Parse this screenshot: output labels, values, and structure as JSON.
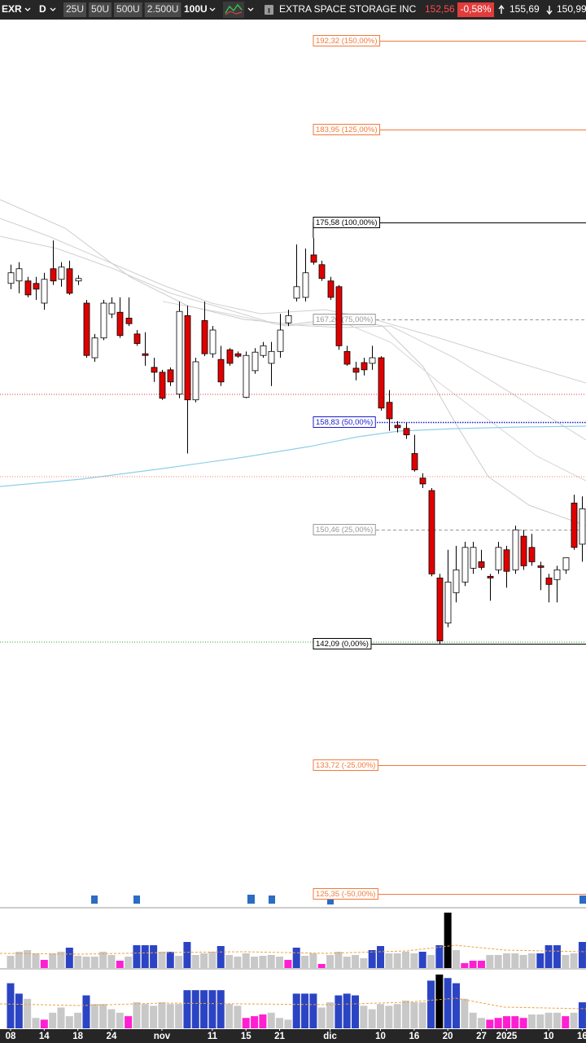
{
  "toolbar": {
    "symbol": "EXR",
    "period": "D",
    "sizes": [
      "25U",
      "50U",
      "500U",
      "2.500U"
    ],
    "qty": "100U",
    "name": "EXTRA SPACE STORAGE INC",
    "price": "152,56",
    "change": "-0,58%",
    "high": "155,69",
    "low": "150,99"
  },
  "chart_data": {
    "type": "candlestick",
    "log_scale": true,
    "ylim": [
      124.56,
      194.4
    ],
    "up_color": "#ffffff",
    "down_color": "#e00000",
    "categories": [
      "08",
      null,
      null,
      null,
      "14",
      null,
      null,
      null,
      "18",
      null,
      null,
      null,
      "24",
      null,
      null,
      null,
      null,
      null,
      "nov",
      null,
      null,
      null,
      null,
      null,
      "11",
      null,
      null,
      null,
      "15",
      null,
      null,
      null,
      "21",
      null,
      null,
      null,
      null,
      null,
      "dic",
      null,
      null,
      null,
      null,
      null,
      "10",
      null,
      null,
      null,
      "16",
      null,
      null,
      null,
      "20",
      null,
      null,
      null,
      "27",
      null,
      null,
      "2025",
      null,
      null,
      null,
      null,
      "10",
      null,
      null,
      null,
      "16"
    ],
    "open": [
      170.28,
      170.49,
      170.49,
      170.28,
      168.6,
      171.54,
      170.63,
      171.54,
      170.49,
      168.6,
      164.04,
      165.68,
      167.69,
      167.83,
      167.34,
      166.01,
      164.37,
      163.25,
      162.85,
      163.05,
      161.07,
      167.55,
      160.61,
      167.13,
      164.37,
      163.9,
      164.7,
      164.37,
      160.81,
      162.98,
      164.23,
      163.58,
      164.56,
      166.94,
      169.02,
      169.09,
      172.73,
      171.89,
      170.49,
      170.0,
      164.56,
      163.18,
      163.64,
      163.58,
      164.04,
      160.41,
      158.57,
      158.32,
      156.34,
      154.42,
      153.46,
      146.87,
      143.58,
      145.79,
      146.57,
      147.59,
      148.07,
      146.99,
      147.47,
      148.96,
      147.47,
      149.98,
      149.14,
      147.77,
      146.87,
      146.75,
      147.47,
      152.5,
      149.38
    ],
    "high": [
      171.89,
      172.1,
      170.84,
      170.84,
      171.19,
      173.99,
      172.1,
      172.24,
      170.98,
      168.88,
      166.01,
      168.88,
      169.09,
      169.09,
      169.09,
      166.34,
      166.15,
      164.04,
      163.05,
      163.25,
      168.74,
      168.39,
      164.04,
      168.74,
      166.67,
      165.03,
      164.83,
      164.56,
      164.56,
      164.83,
      165.35,
      165.35,
      167.69,
      168.04,
      173.64,
      173.29,
      174.2,
      172.24,
      170.84,
      170.14,
      165.03,
      163.71,
      164.04,
      165.03,
      164.17,
      161.4,
      158.9,
      158.77,
      157.81,
      154.8,
      153.65,
      147.17,
      148.96,
      149.26,
      149.56,
      149.56,
      148.96,
      147.17,
      149.56,
      149.26,
      150.78,
      150.46,
      150.16,
      148.07,
      147.17,
      147.77,
      148.37,
      153.14,
      153.01
    ],
    "low": [
      169.79,
      169.44,
      169.09,
      168.88,
      168.04,
      170.14,
      170.0,
      169.3,
      170.14,
      164.04,
      163.71,
      165.49,
      167.34,
      165.68,
      166.67,
      165.03,
      163.38,
      162.06,
      160.61,
      161.73,
      160.74,
      156.34,
      160.41,
      164.17,
      164.04,
      161.73,
      163.38,
      164.04,
      160.74,
      162.72,
      164.04,
      161.73,
      164.04,
      166.67,
      168.74,
      168.74,
      171.89,
      170.49,
      168.88,
      164.7,
      163.38,
      162.19,
      162.59,
      163.05,
      159.75,
      158.13,
      158.0,
      157.49,
      154.93,
      153.65,
      146.99,
      142.09,
      143.28,
      145.08,
      146.27,
      147.17,
      147.47,
      145.2,
      147.17,
      146.15,
      147.17,
      147.47,
      147.77,
      145.97,
      145.08,
      145.08,
      147.17,
      148.96,
      148.07
    ],
    "close": [
      171.19,
      171.54,
      169.3,
      169.79,
      170.63,
      170.49,
      171.68,
      169.44,
      170.7,
      164.23,
      165.68,
      168.6,
      168.6,
      165.88,
      166.87,
      165.22,
      164.23,
      162.85,
      160.74,
      162.06,
      167.9,
      160.61,
      163.71,
      164.37,
      166.34,
      162.06,
      163.58,
      164.17,
      164.23,
      164.5,
      165.03,
      164.56,
      166.34,
      167.55,
      170.0,
      171.19,
      172.1,
      170.7,
      169.09,
      165.03,
      163.51,
      162.85,
      163.05,
      164.04,
      159.95,
      159.09,
      158.38,
      157.81,
      155.06,
      153.97,
      147.17,
      142.3,
      146.57,
      147.47,
      149.14,
      149.14,
      147.65,
      146.87,
      149.14,
      147.36,
      150.46,
      147.77,
      148.07,
      147.65,
      146.39,
      147.47,
      148.37,
      149.14,
      152.06
    ],
    "fib_levels": [
      {
        "value": 192.32,
        "label": "192,32 (150,00%)",
        "color": "#f07a3c",
        "style": "solid"
      },
      {
        "value": 183.95,
        "label": "183,95 (125,00%)",
        "color": "#f07a3c",
        "style": "solid"
      },
      {
        "value": 175.58,
        "label": "175,58 (100,00%)",
        "color": "#000000",
        "style": "solid"
      },
      {
        "value": 167.2,
        "label": "167,20 (75,00%)",
        "color": "#999999",
        "style": "dashed"
      },
      {
        "value": 158.83,
        "label": "158,83 (50,00%)",
        "color": "#1c1ccc",
        "style": "dotted"
      },
      {
        "value": 150.46,
        "label": "150,46 (25,00%)",
        "color": "#999999",
        "style": "dashed"
      },
      {
        "value": 142.09,
        "label": "142,09 (0,00%)",
        "color": "#000000",
        "style": "solid"
      },
      {
        "value": 133.72,
        "label": "133,72 (-25,00%)",
        "color": "#f07a3c",
        "style": "solid"
      },
      {
        "value": 125.35,
        "label": "125,35 (-50,00%)",
        "color": "#f07a3c",
        "style": "solid"
      }
    ],
    "volume_panels": [
      {
        "values": [
          15,
          20,
          22,
          18,
          10,
          18,
          20,
          25,
          15,
          14,
          14,
          20,
          16,
          9,
          14,
          28,
          28,
          28,
          20,
          20,
          15,
          32,
          16,
          18,
          20,
          27,
          16,
          14,
          18,
          14,
          15,
          16,
          14,
          10,
          25,
          15,
          18,
          5,
          16,
          20,
          14,
          16,
          12,
          22,
          27,
          18,
          18,
          20,
          18,
          20,
          16,
          28,
          68,
          22,
          6,
          9,
          9,
          16,
          16,
          18,
          18,
          16,
          18,
          18,
          28,
          28,
          16,
          18,
          32
        ],
        "colors": [
          "#c8c8c8",
          "#c8c8c8",
          "#c8c8c8",
          "#c8c8c8",
          "#ff1fd2",
          "#c8c8c8",
          "#c8c8c8",
          "#2b44c4",
          "#c8c8c8",
          "#c8c8c8",
          "#c8c8c8",
          "#c8c8c8",
          "#c8c8c8",
          "#ff1fd2",
          "#c8c8c8",
          "#2b44c4",
          "#2b44c4",
          "#2b44c4",
          "#c8c8c8",
          "#2b44c4",
          "#c8c8c8",
          "#2b44c4",
          "#c8c8c8",
          "#c8c8c8",
          "#c8c8c8",
          "#2b44c4",
          "#c8c8c8",
          "#c8c8c8",
          "#c8c8c8",
          "#c8c8c8",
          "#c8c8c8",
          "#c8c8c8",
          "#c8c8c8",
          "#ff1fd2",
          "#2b44c4",
          "#c8c8c8",
          "#c8c8c8",
          "#ff1fd2",
          "#c8c8c8",
          "#c8c8c8",
          "#c8c8c8",
          "#c8c8c8",
          "#c8c8c8",
          "#2b44c4",
          "#2b44c4",
          "#c8c8c8",
          "#c8c8c8",
          "#c8c8c8",
          "#c8c8c8",
          "#2b44c4",
          "#c8c8c8",
          "#2b44c4",
          "#000000",
          "#c8c8c8",
          "#ff1fd2",
          "#ff1fd2",
          "#ff1fd2",
          "#c8c8c8",
          "#c8c8c8",
          "#c8c8c8",
          "#c8c8c8",
          "#c8c8c8",
          "#c8c8c8",
          "#2b44c4",
          "#2b44c4",
          "#2b44c4",
          "#c8c8c8",
          "#c8c8c8",
          "#2b44c4"
        ]
      },
      {
        "values": [
          52,
          40,
          34,
          12,
          10,
          18,
          24,
          14,
          18,
          38,
          28,
          28,
          22,
          18,
          14,
          30,
          28,
          26,
          30,
          28,
          28,
          44,
          44,
          44,
          44,
          44,
          28,
          26,
          12,
          14,
          16,
          18,
          12,
          10,
          40,
          40,
          40,
          24,
          30,
          38,
          40,
          38,
          26,
          22,
          28,
          26,
          28,
          32,
          30,
          30,
          55,
          62,
          58,
          52,
          34,
          18,
          12,
          10,
          12,
          14,
          14,
          12,
          16,
          16,
          18,
          18,
          14,
          18,
          30
        ],
        "colors": [
          "#2b44c4",
          "#2b44c4",
          "#c8c8c8",
          "#c8c8c8",
          "#ff1fd2",
          "#c8c8c8",
          "#c8c8c8",
          "#c8c8c8",
          "#c8c8c8",
          "#2b44c4",
          "#c8c8c8",
          "#c8c8c8",
          "#c8c8c8",
          "#c8c8c8",
          "#ff1fd2",
          "#c8c8c8",
          "#c8c8c8",
          "#c8c8c8",
          "#c8c8c8",
          "#c8c8c8",
          "#c8c8c8",
          "#2b44c4",
          "#2b44c4",
          "#2b44c4",
          "#2b44c4",
          "#2b44c4",
          "#c8c8c8",
          "#c8c8c8",
          "#ff1fd2",
          "#ff1fd2",
          "#ff1fd2",
          "#c8c8c8",
          "#c8c8c8",
          "#c8c8c8",
          "#2b44c4",
          "#2b44c4",
          "#2b44c4",
          "#c8c8c8",
          "#c8c8c8",
          "#2b44c4",
          "#2b44c4",
          "#2b44c4",
          "#c8c8c8",
          "#c8c8c8",
          "#c8c8c8",
          "#c8c8c8",
          "#c8c8c8",
          "#c8c8c8",
          "#c8c8c8",
          "#c8c8c8",
          "#2b44c4",
          "#000000",
          "#2b44c4",
          "#2b44c4",
          "#c8c8c8",
          "#c8c8c8",
          "#c8c8c8",
          "#ff1fd2",
          "#ff1fd2",
          "#ff1fd2",
          "#ff1fd2",
          "#ff1fd2",
          "#c8c8c8",
          "#c8c8c8",
          "#c8c8c8",
          "#c8c8c8",
          "#ff1fd2",
          "#c8c8c8",
          "#2b44c4"
        ]
      }
    ]
  }
}
